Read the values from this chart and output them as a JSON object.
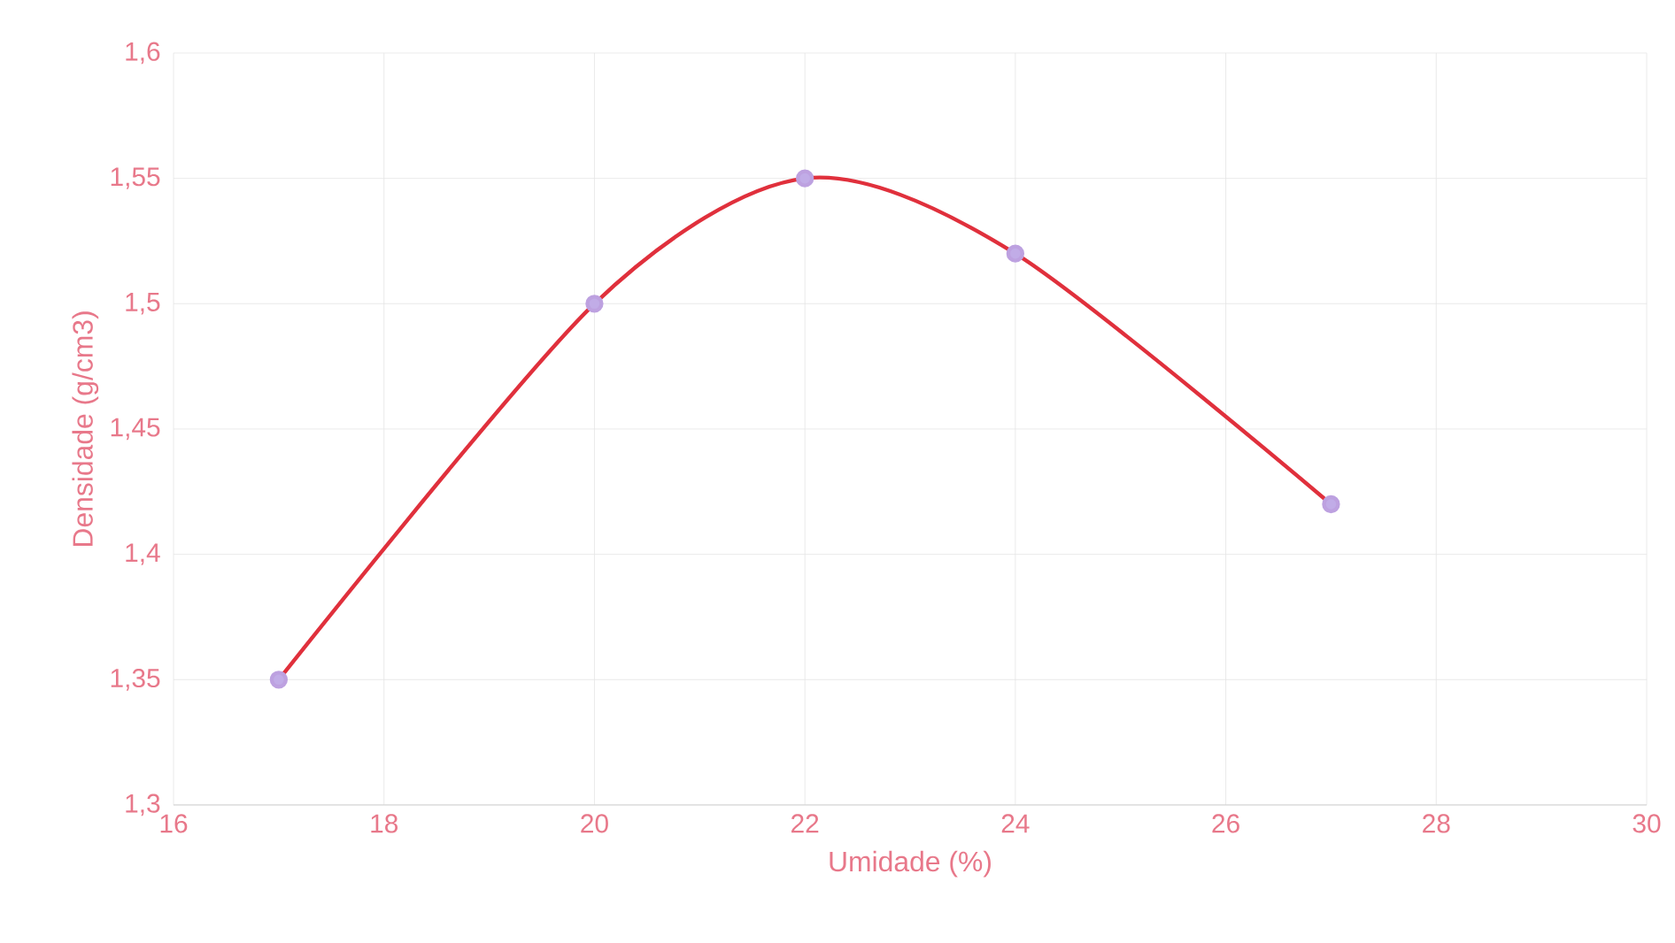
{
  "chart_data": {
    "type": "line",
    "xlabel": "Umidade (%)",
    "ylabel": "Densidade (g/cm3)",
    "x": [
      17,
      20,
      22,
      24,
      27
    ],
    "series": [
      {
        "color": "#e0303c",
        "values": [
          1.35,
          1.5,
          1.55,
          1.52,
          1.42
        ]
      }
    ],
    "xlim": [
      16,
      30
    ],
    "xticks": [
      16,
      18,
      20,
      22,
      24,
      26,
      28,
      30
    ],
    "ylim": [
      1.3,
      1.6
    ],
    "yticks": [
      {
        "value": 1.3,
        "label": "1,3"
      },
      {
        "value": 1.35,
        "label": "1,35"
      },
      {
        "value": 1.4,
        "label": "1,4"
      },
      {
        "value": 1.45,
        "label": "1,45"
      },
      {
        "value": 1.5,
        "label": "1,5"
      },
      {
        "value": 1.55,
        "label": "1,55"
      },
      {
        "value": 1.6,
        "label": "1,6"
      }
    ],
    "grid": true,
    "marker": "circle",
    "line_style": "solid"
  }
}
